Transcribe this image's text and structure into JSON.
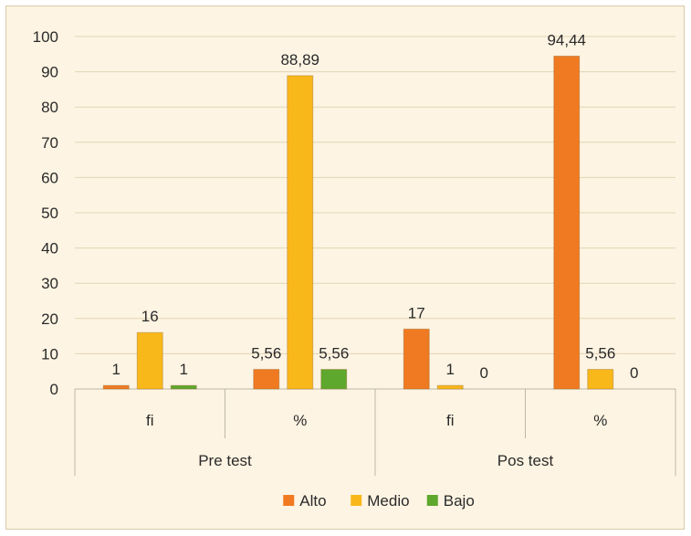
{
  "chart_data": {
    "type": "bar",
    "groups": [
      {
        "label": "Pre test",
        "categories": [
          "fi",
          "%"
        ]
      },
      {
        "label": "Pos test",
        "categories": [
          "fi",
          "%"
        ]
      }
    ],
    "series": [
      {
        "name": "Alto",
        "color": "#f07a22",
        "values": [
          1,
          5.56,
          17,
          94.44
        ],
        "labels": [
          "1",
          "5,56",
          "17",
          "94,44"
        ]
      },
      {
        "name": "Medio",
        "color": "#f9b81a",
        "values": [
          16,
          88.89,
          1,
          5.56
        ],
        "labels": [
          "16",
          "88,89",
          "1",
          "5,56"
        ]
      },
      {
        "name": "Bajo",
        "color": "#5ea82d",
        "values": [
          1,
          5.56,
          0,
          0
        ],
        "labels": [
          "1",
          "5,56",
          "0",
          "0"
        ]
      }
    ],
    "ylim": [
      0,
      100
    ],
    "yticks": [
      0,
      10,
      20,
      30,
      40,
      50,
      60,
      70,
      80,
      90,
      100
    ],
    "grid": true,
    "legend_position": "bottom"
  }
}
